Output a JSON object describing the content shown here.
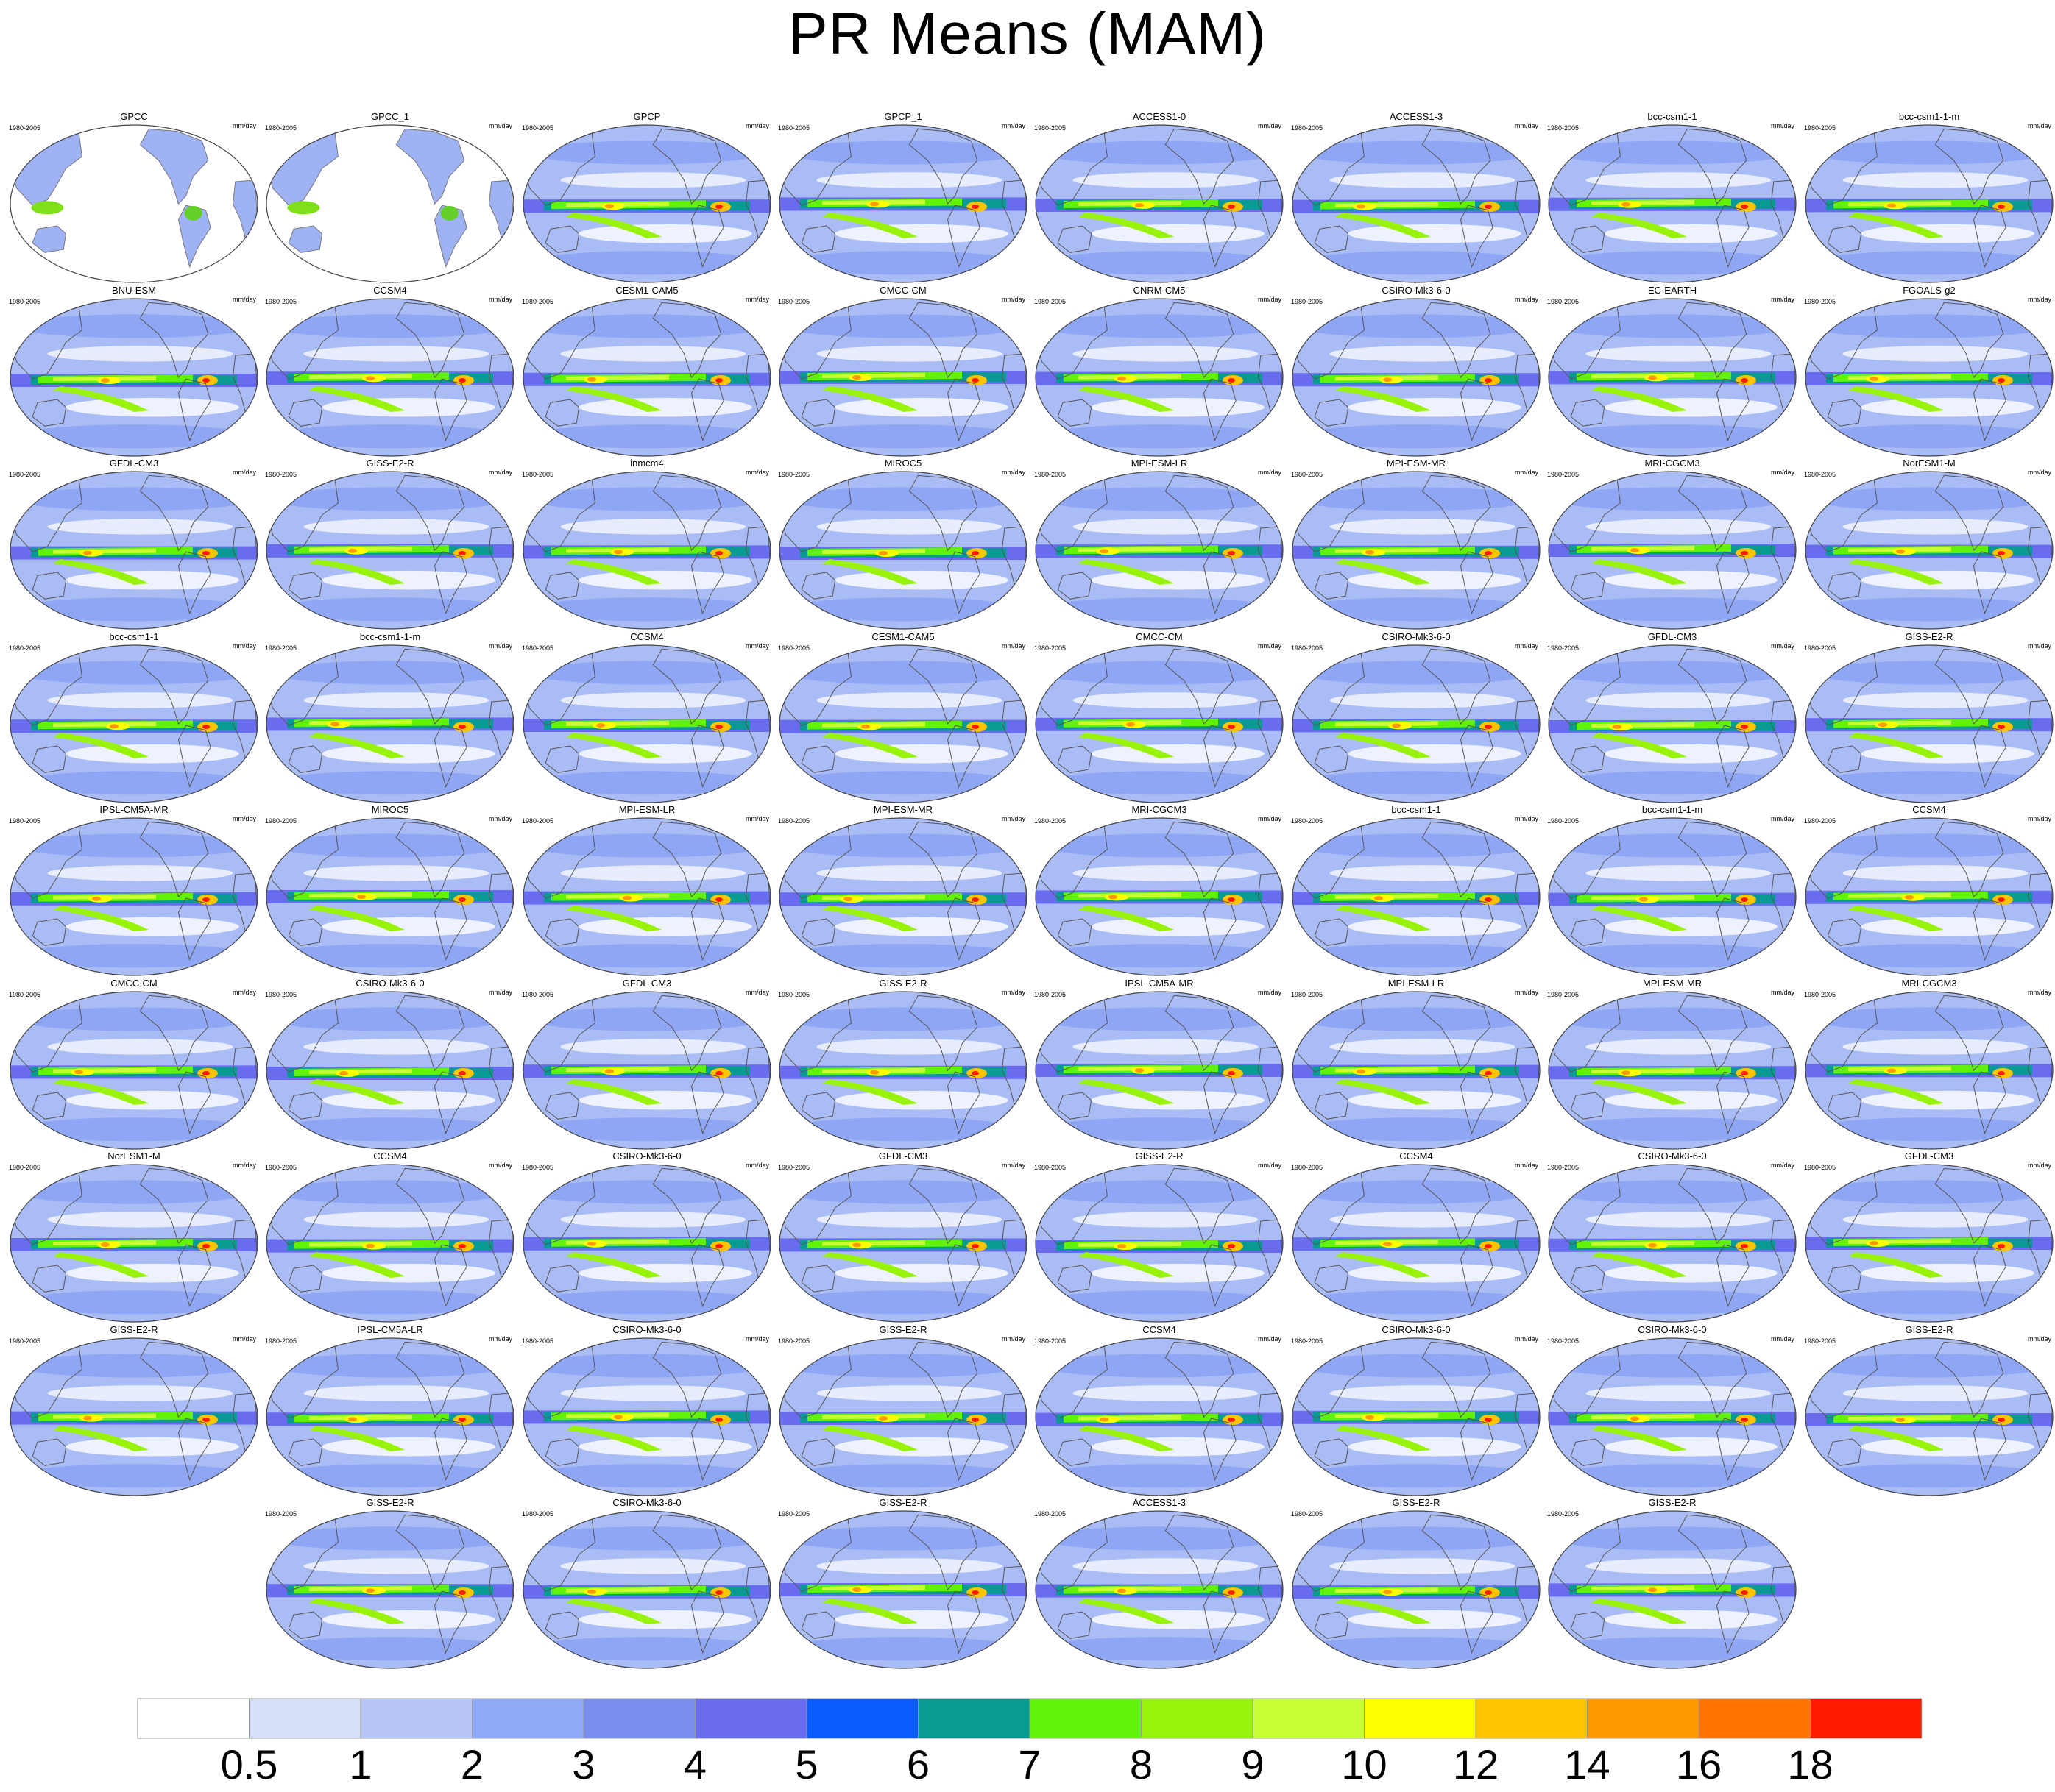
{
  "title": "PR Means (MAM)",
  "period_label": "1980-2005",
  "units_label": "mm/day",
  "rows": [
    [
      "GPCC",
      "GPCC_1",
      "GPCP",
      "GPCP_1",
      "ACCESS1-0",
      "ACCESS1-3",
      "bcc-csm1-1",
      "bcc-csm1-1-m"
    ],
    [
      "BNU-ESM",
      "CCSM4",
      "CESM1-CAM5",
      "CMCC-CM",
      "CNRM-CM5",
      "CSIRO-Mk3-6-0",
      "EC-EARTH",
      "FGOALS-g2"
    ],
    [
      "GFDL-CM3",
      "GISS-E2-R",
      "inmcm4",
      "MIROC5",
      "MPI-ESM-LR",
      "MPI-ESM-MR",
      "MRI-CGCM3",
      "NorESM1-M"
    ],
    [
      "bcc-csm1-1",
      "bcc-csm1-1-m",
      "CCSM4",
      "CESM1-CAM5",
      "CMCC-CM",
      "CSIRO-Mk3-6-0",
      "GFDL-CM3",
      "GISS-E2-R"
    ],
    [
      "IPSL-CM5A-MR",
      "MIROC5",
      "MPI-ESM-LR",
      "MPI-ESM-MR",
      "MRI-CGCM3",
      "bcc-csm1-1",
      "bcc-csm1-1-m",
      "CCSM4"
    ],
    [
      "CMCC-CM",
      "CSIRO-Mk3-6-0",
      "GFDL-CM3",
      "GISS-E2-R",
      "IPSL-CM5A-MR",
      "MPI-ESM-LR",
      "MPI-ESM-MR",
      "MRI-CGCM3"
    ],
    [
      "NorESM1-M",
      "CCSM4",
      "CSIRO-Mk3-6-0",
      "GFDL-CM3",
      "GISS-E2-R",
      "CCSM4",
      "CSIRO-Mk3-6-0",
      "GFDL-CM3"
    ],
    [
      "GISS-E2-R",
      "IPSL-CM5A-LR",
      "CSIRO-Mk3-6-0",
      "GISS-E2-R",
      "CCSM4",
      "CSIRO-Mk3-6-0",
      "CSIRO-Mk3-6-0",
      "GISS-E2-R"
    ],
    [
      "GISS-E2-R",
      "CSIRO-Mk3-6-0",
      "GISS-E2-R",
      "ACCESS1-3",
      "GISS-E2-R",
      "GISS-E2-R"
    ]
  ],
  "observation_only_panels": [
    "GPCC",
    "GPCC_1"
  ],
  "colorbar": {
    "labels": [
      "0.5",
      "1",
      "2",
      "3",
      "4",
      "5",
      "6",
      "7",
      "8",
      "9",
      "10",
      "12",
      "14",
      "16",
      "18"
    ],
    "colors": [
      "#ffffff",
      "#d6dff8",
      "#b6c6f7",
      "#8faaf6",
      "#7a8ef0",
      "#6a6cf0",
      "#0a5cff",
      "#099a94",
      "#62f20a",
      "#99f20a",
      "#c8ff33",
      "#ffff00",
      "#ffc400",
      "#ff9a00",
      "#ff7400",
      "#ff1a00"
    ]
  }
}
